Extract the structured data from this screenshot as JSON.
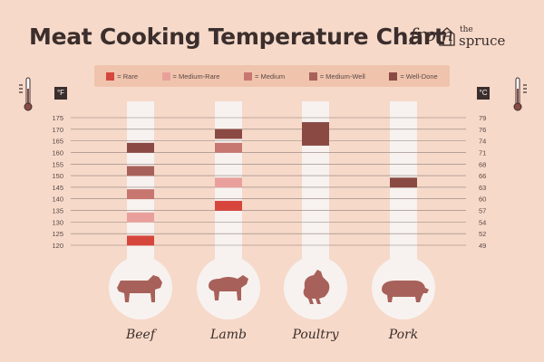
{
  "title": "Meat Cooking Temperature Chart",
  "brand": {
    "from": "from",
    "the": "the",
    "name": "spruce"
  },
  "legend": [
    {
      "label": "= Rare",
      "color": "#d6463d"
    },
    {
      "label": "= Medium-Rare",
      "color": "#e9a09c"
    },
    {
      "label": "= Medium",
      "color": "#c87670"
    },
    {
      "label": "= Medium-Well",
      "color": "#a8615a"
    },
    {
      "label": "= Well-Done",
      "color": "#8a4a43"
    }
  ],
  "units": {
    "left": "°F",
    "right": "°C"
  },
  "chart_data": {
    "type": "bar",
    "title": "Meat Cooking Temperature Chart",
    "y_left_ticks": [
      175,
      170,
      165,
      160,
      155,
      150,
      145,
      140,
      135,
      130,
      125,
      120
    ],
    "y_right_ticks": [
      79,
      76,
      74,
      71,
      68,
      66,
      63,
      60,
      57,
      54,
      52,
      49
    ],
    "ylim": [
      118,
      179
    ],
    "series_levels": [
      "Rare",
      "Medium-Rare",
      "Medium",
      "Medium-Well",
      "Well-Done"
    ],
    "categories": [
      {
        "name": "Beef",
        "icon": "cow-icon",
        "marks": [
          {
            "level": "Rare",
            "temp": 122
          },
          {
            "level": "Medium-Rare",
            "temp": 132
          },
          {
            "level": "Medium",
            "temp": 142
          },
          {
            "level": "Medium-Well",
            "temp": 152
          },
          {
            "level": "Well-Done",
            "temp": 162
          }
        ]
      },
      {
        "name": "Lamb",
        "icon": "sheep-icon",
        "marks": [
          {
            "level": "Rare",
            "temp": 137
          },
          {
            "level": "Medium-Rare",
            "temp": 147
          },
          {
            "level": "Medium",
            "temp": 162
          },
          {
            "level": "Well-Done",
            "temp": 168
          }
        ]
      },
      {
        "name": "Poultry",
        "icon": "chicken-icon",
        "marks": [
          {
            "level": "Well-Done",
            "temp": 168,
            "span": 2
          }
        ]
      },
      {
        "name": "Pork",
        "icon": "pig-icon",
        "marks": [
          {
            "level": "Well-Done",
            "temp": 147
          }
        ]
      }
    ]
  }
}
